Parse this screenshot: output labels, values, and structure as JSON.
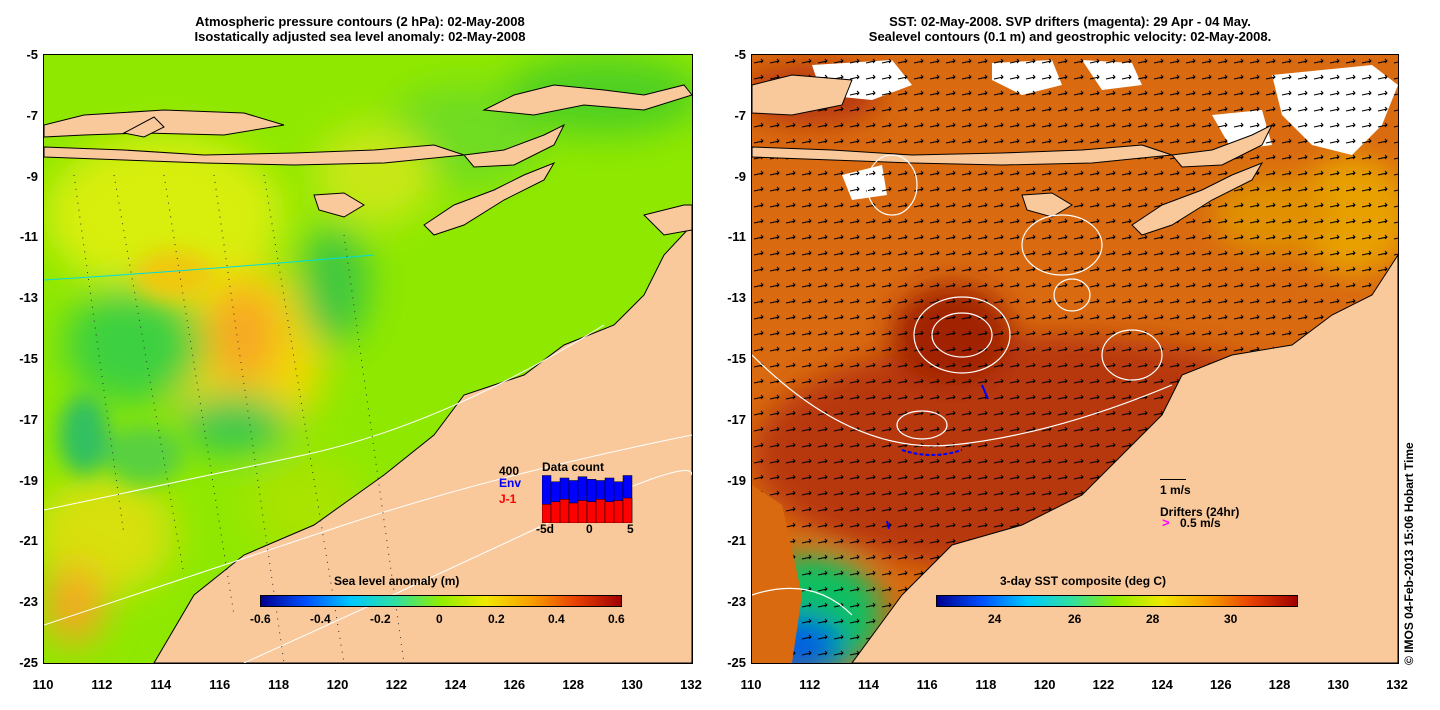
{
  "left": {
    "title_line1": "Atmospheric pressure contours (2 hPa): 02-May-2008",
    "title_line2": "Isostatically adjusted sea level anomaly: 02-May-2008",
    "colorbar_label": "Sea level anomaly (m)",
    "colorbar_ticks": [
      "-0.6",
      "-0.4",
      "-0.2",
      "0",
      "0.2",
      "0.4",
      "0.6"
    ],
    "inset": {
      "title": "Data count",
      "max_label": "400",
      "series": [
        {
          "name": "Env",
          "color": "#0000ff",
          "values": [
            380,
            330,
            360,
            340,
            370,
            350,
            340,
            360,
            330,
            380
          ]
        },
        {
          "name": "J-1",
          "color": "#ff0000",
          "values": [
            150,
            170,
            190,
            160,
            180,
            170,
            190,
            170,
            180,
            200
          ]
        }
      ],
      "x_ticks": [
        "-5d",
        "0",
        "5"
      ]
    }
  },
  "right": {
    "title_line1": "SST: 02-May-2008. SVP drifters (magenta): 29 Apr - 04 May.",
    "title_line2": "Sealevel contours (0.1 m) and geostrophic velocity: 02-May-2008.",
    "colorbar_label": "3-day SST composite (deg C)",
    "colorbar_ticks": [
      "24",
      "26",
      "28",
      "30"
    ],
    "legend_velocity": "1 m/s",
    "legend_drifters": "Drifters (24hr)",
    "legend_drifter_speed": "0.5 m/s"
  },
  "x_ticks": [
    "110",
    "112",
    "114",
    "116",
    "118",
    "120",
    "122",
    "124",
    "126",
    "128",
    "130",
    "132"
  ],
  "y_ticks": [
    "-5",
    "-7",
    "-9",
    "-11",
    "-13",
    "-15",
    "-17",
    "-19",
    "-21",
    "-23",
    "-25"
  ],
  "credit": "© IMOS 04-Feb-2013 15:06 Hobart Time",
  "colors": {
    "land": "#f9c89b",
    "sla_bg": "#88ee00",
    "sst_bg": "#c8500a",
    "drifter": "#ff00ff"
  }
}
